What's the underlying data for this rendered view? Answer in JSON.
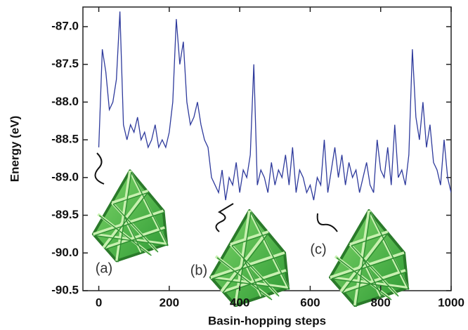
{
  "chart_data": {
    "type": "line",
    "x_label": "Basin-hopping steps",
    "y_label": "Energy (eV)",
    "color": "#2e3a9c",
    "x": [
      0,
      10,
      20,
      30,
      40,
      50,
      60,
      70,
      80,
      90,
      100,
      110,
      120,
      130,
      140,
      150,
      160,
      170,
      180,
      190,
      200,
      210,
      220,
      230,
      240,
      250,
      260,
      270,
      280,
      290,
      300,
      310,
      320,
      330,
      340,
      350,
      360,
      370,
      380,
      390,
      400,
      410,
      420,
      430,
      440,
      450,
      460,
      470,
      480,
      490,
      500,
      510,
      520,
      530,
      540,
      550,
      560,
      570,
      580,
      590,
      600,
      610,
      620,
      630,
      640,
      650,
      660,
      670,
      680,
      690,
      700,
      710,
      720,
      730,
      740,
      750,
      760,
      770,
      780,
      790,
      800,
      810,
      820,
      830,
      840,
      850,
      860,
      870,
      880,
      890,
      900,
      910,
      920,
      930,
      940,
      950,
      960,
      970,
      980,
      990,
      1000
    ],
    "values": [
      -88.6,
      -87.3,
      -87.6,
      -88.1,
      -88.0,
      -87.7,
      -86.8,
      -88.3,
      -88.5,
      -88.3,
      -88.4,
      -88.2,
      -88.5,
      -88.4,
      -88.6,
      -88.5,
      -88.3,
      -88.6,
      -88.5,
      -88.6,
      -88.4,
      -88.0,
      -86.9,
      -87.5,
      -87.2,
      -88.0,
      -88.3,
      -88.2,
      -88.0,
      -88.3,
      -88.5,
      -88.6,
      -89.0,
      -89.1,
      -89.2,
      -88.9,
      -89.3,
      -89.0,
      -89.1,
      -88.8,
      -89.2,
      -88.9,
      -89.0,
      -88.7,
      -87.5,
      -89.1,
      -88.9,
      -89.0,
      -89.2,
      -88.8,
      -89.1,
      -88.9,
      -89.0,
      -88.7,
      -89.1,
      -88.6,
      -89.2,
      -88.9,
      -89.0,
      -89.2,
      -89.1,
      -89.3,
      -89.0,
      -89.1,
      -88.5,
      -89.2,
      -88.9,
      -88.6,
      -89.0,
      -88.7,
      -89.1,
      -88.8,
      -89.0,
      -88.9,
      -89.2,
      -89.0,
      -88.8,
      -89.1,
      -89.2,
      -88.5,
      -88.9,
      -89.0,
      -88.6,
      -89.1,
      -88.3,
      -89.0,
      -88.9,
      -89.1,
      -88.7,
      -87.3,
      -88.2,
      -88.5,
      -88.0,
      -88.6,
      -88.3,
      -88.8,
      -88.9,
      -89.1,
      -88.5,
      -89.0,
      -89.2
    ],
    "xlim": [
      -45,
      1000
    ],
    "xticks": [
      0,
      200,
      400,
      600,
      800,
      1000
    ],
    "ylim": [
      -90.5,
      -86.74
    ],
    "yticks": [
      {
        "value": -87,
        "label": "-87.0"
      },
      -87.5,
      {
        "value": -88,
        "label": "-88.0"
      },
      -88.5,
      {
        "value": -89,
        "label": "-89.0"
      },
      -89.5,
      {
        "value": -90,
        "label": "-90.0"
      },
      -90.5
    ],
    "annotations": [
      "(a)",
      "(b)",
      "(c)"
    ]
  }
}
